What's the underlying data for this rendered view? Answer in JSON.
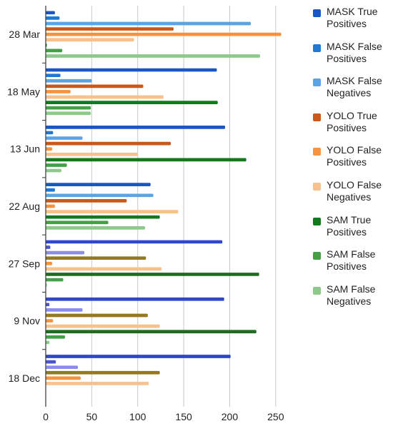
{
  "chart_data": {
    "type": "bar",
    "orientation": "horizontal",
    "categories": [
      "28 Mar",
      "18 May",
      "13 Jun",
      "22 Aug",
      "27 Sep",
      "9 Nov",
      "18 Dec"
    ],
    "xlim": [
      0,
      275
    ],
    "xticks": [
      "0",
      "50",
      "100",
      "150",
      "200",
      "250"
    ],
    "grid": "vertical",
    "legend_position": "right",
    "series": [
      {
        "name": "MASK True Positives",
        "color": "#1a56c4",
        "values": [
          10,
          186,
          195,
          114,
          192,
          194,
          201
        ]
      },
      {
        "name": "MASK False Positives",
        "color": "#1f78d1",
        "values": [
          15,
          16,
          8,
          10,
          5,
          4,
          11
        ]
      },
      {
        "name": "MASK False Negatives",
        "color": "#5aa4e6",
        "values": [
          223,
          50,
          40,
          117,
          42,
          40,
          35
        ]
      },
      {
        "name": "YOLO True Positives",
        "color": "#c9591b",
        "values": [
          139,
          106,
          136,
          88,
          109,
          111,
          124
        ]
      },
      {
        "name": "YOLO False Positives",
        "color": "#f5923e",
        "values": [
          256,
          27,
          7,
          10,
          7,
          8,
          38
        ]
      },
      {
        "name": "YOLO False Negatives",
        "color": "#f8c08a",
        "values": [
          96,
          128,
          100,
          144,
          126,
          124,
          112
        ]
      },
      {
        "name": "SAM True Positives",
        "color": "#137a1c",
        "values": [
          1,
          187,
          218,
          124,
          232,
          229,
          null
        ]
      },
      {
        "name": "SAM False Positives",
        "color": "#43a047",
        "values": [
          18,
          49,
          23,
          68,
          19,
          21,
          null
        ]
      },
      {
        "name": "SAM False Negatives",
        "color": "#8cc98a",
        "values": [
          233,
          49,
          17,
          108,
          1,
          4,
          null
        ]
      }
    ],
    "bar_color_overrides": {
      "27 Sep": [
        "#2f47c8",
        "#4a55c8",
        "#8a8cf0",
        "#94791f",
        "#f5923e",
        "#f8c08a",
        "#1f6b1f",
        "#43a047",
        "#8cc98a"
      ],
      "9 Nov": [
        "#2f47c8",
        "#4a55c8",
        "#8a8cf0",
        "#94791f",
        "#f5923e",
        "#f8c08a",
        "#1f6b1f",
        "#43a047",
        "#8cc98a"
      ],
      "18 Dec": [
        "#2f47c8",
        "#4a55c8",
        "#8a8cf0",
        "#94791f",
        "#f5923e",
        "#f8c08a",
        "#1f6b1f",
        "#43a047",
        "#8cc98a"
      ]
    }
  }
}
